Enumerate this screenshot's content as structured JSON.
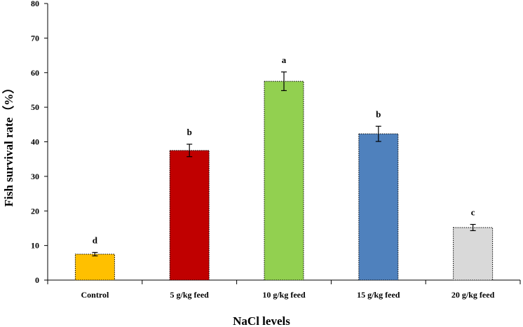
{
  "chart_data": {
    "type": "bar",
    "title": "",
    "xlabel": "NaCl levels",
    "ylabel": "Fish survival rate（%）",
    "ylim": [
      0,
      80
    ],
    "yticks": [
      "0",
      "10",
      "20",
      "30",
      "40",
      "50",
      "60",
      "70",
      "80"
    ],
    "grid": false,
    "categories": [
      "Control",
      "5 g/kg feed",
      "10 g/kg feed",
      "15 g/kg feed",
      "20 g/kg feed"
    ],
    "values": [
      7.5,
      37.5,
      57.5,
      42.3,
      15.2
    ],
    "errors": [
      0.5,
      1.8,
      2.7,
      2.2,
      0.9
    ],
    "letters": [
      "d",
      "b",
      "a",
      "b",
      "c"
    ],
    "colors": [
      "#FFC000",
      "#C00000",
      "#92D050",
      "#4F81BD",
      "#D9D9D9"
    ]
  }
}
